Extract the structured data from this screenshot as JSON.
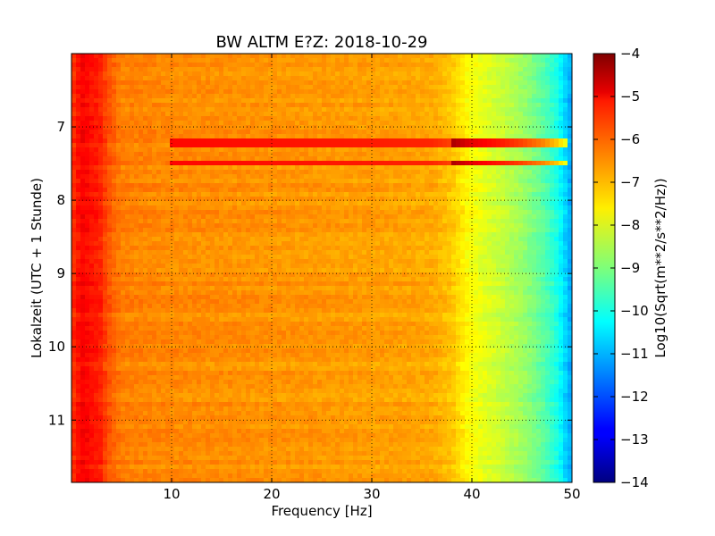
{
  "chart_data": {
    "type": "heatmap",
    "title": "BW ALTM E?Z: 2018-10-29",
    "xlabel": "Frequency [Hz]",
    "ylabel": "Lokalzeit (UTC + 1 Stunde)",
    "colorbar_label": "Log10(Sqrt(m**2/s**2/Hz))",
    "xlim": [
      0,
      50
    ],
    "ylim": [
      11.85,
      6.0
    ],
    "x_ticks": [
      10,
      20,
      30,
      40,
      50
    ],
    "y_ticks": [
      7,
      8,
      9,
      10,
      11
    ],
    "clim": [
      -14,
      -4
    ],
    "colorbar_ticks": [
      -4,
      -5,
      -6,
      -7,
      -8,
      -9,
      -10,
      -11,
      -12,
      -13,
      -14
    ],
    "colormap": "jet",
    "grid": true,
    "spectrum_profile": {
      "frequency_hz": [
        0,
        1,
        2,
        3,
        3.5,
        5,
        10,
        20,
        30,
        36,
        38,
        39.5,
        41,
        43,
        45,
        47,
        48.5,
        49.5,
        50
      ],
      "log10_value": [
        -5.8,
        -5.2,
        -5.4,
        -5.6,
        -6.0,
        -6.5,
        -6.6,
        -6.7,
        -6.8,
        -6.9,
        -7.2,
        -7.7,
        -8.0,
        -8.3,
        -8.7,
        -9.3,
        -10.0,
        -10.8,
        -11.2
      ]
    },
    "strong_lines": [
      {
        "time": 7.22,
        "log10_value": -5.2
      },
      {
        "time": 7.5,
        "log10_value": -5.4
      }
    ]
  }
}
